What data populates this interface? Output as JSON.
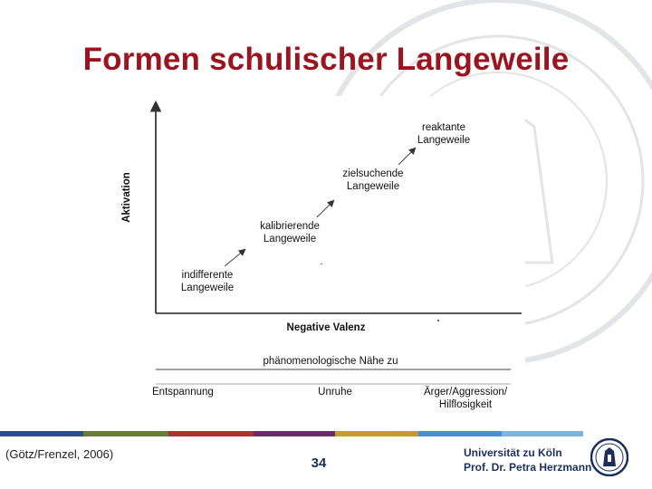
{
  "slide": {
    "title": "Formen schulischer Langeweile",
    "citation": "(Götz/Frenzel, 2006)",
    "page_number": "34",
    "institution_line1": "Universität zu Köln",
    "institution_line2": "Prof. Dr. Petra Herzmann"
  },
  "diagram": {
    "y_axis_label": "Aktivation",
    "x_axis_label": "Negative Valenz",
    "boredom_types": [
      {
        "line1": "indifferente",
        "line2": "Langeweile"
      },
      {
        "line1": "kalibrierende",
        "line2": "Langeweile"
      },
      {
        "line1": "zielsuchende",
        "line2": "Langeweile"
      },
      {
        "line1": "reaktante",
        "line2": "Langeweile"
      }
    ],
    "proximity_label": "phänomenologische Nähe zu",
    "proximity_items": [
      {
        "line1": "Entspannung",
        "line2": ""
      },
      {
        "line1": "Unruhe",
        "line2": ""
      },
      {
        "line1": "Ärger/Aggression/",
        "line2": "Hilflosigkeit"
      }
    ]
  },
  "colors": {
    "title": "#9b1520",
    "footer_text": "#1c2f5c",
    "strip": [
      "#2b4e8c",
      "#6a7c3a",
      "#a5362f",
      "#6a2a6e",
      "#c79a2e",
      "#4a8fcf",
      "#7bb5de"
    ]
  },
  "icons": [
    "university-seal-watermark",
    "university-logo"
  ]
}
